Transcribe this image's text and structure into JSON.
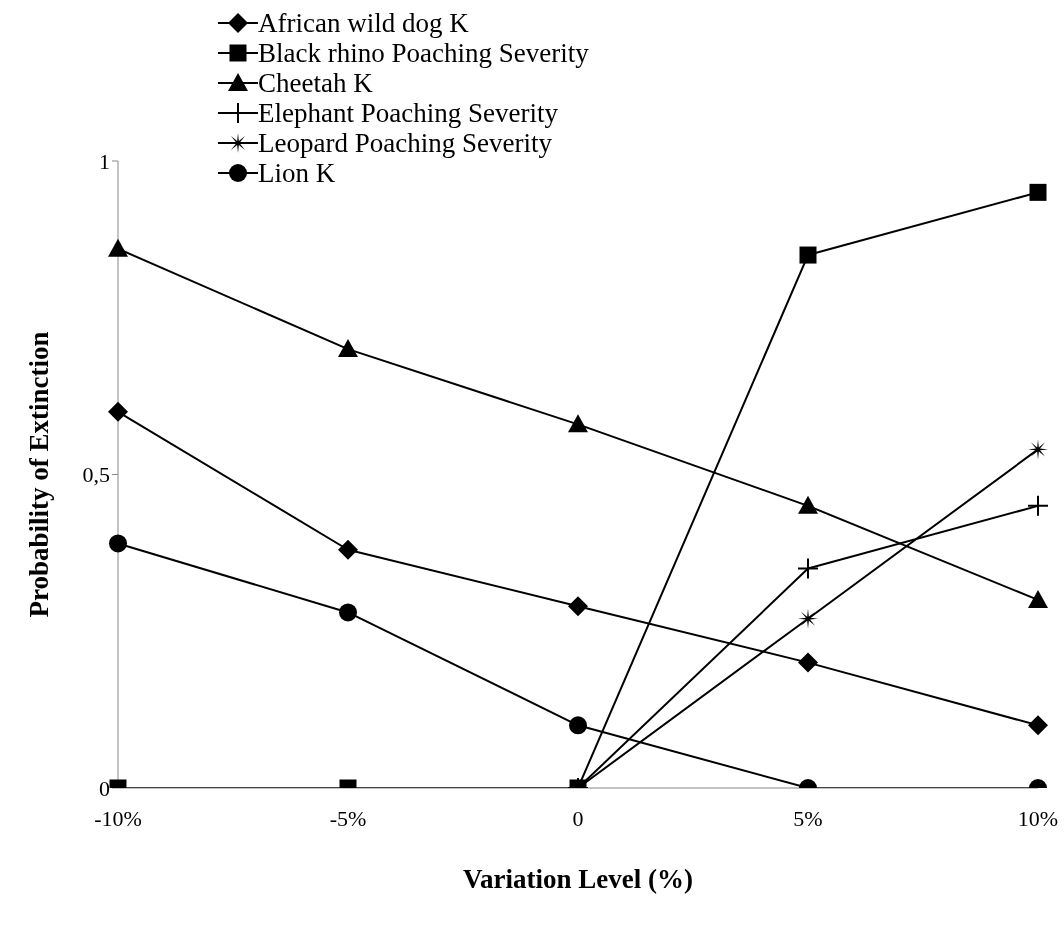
{
  "chart_data": {
    "type": "line",
    "xlabel": "Variation  Level (%)",
    "ylabel": "Probability of Extinction",
    "categories": [
      "-10%",
      "-5%",
      "0",
      "5%",
      "10%"
    ],
    "ylim": [
      0,
      1
    ],
    "yticks": [
      0,
      {
        "value": 0.5,
        "label": "0,5"
      },
      1
    ],
    "grid": false,
    "legend": "top",
    "series": [
      {
        "name": "African wild dog K",
        "color": "#000000",
        "marker": "diamond",
        "values": [
          0.6,
          0.38,
          0.29,
          0.2,
          0.1
        ]
      },
      {
        "name": "Black rhino Poaching Severity",
        "color": "#000000",
        "marker": "square",
        "values": [
          0,
          0,
          0,
          0.85,
          0.95
        ]
      },
      {
        "name": "Cheetah K",
        "color": "#000000",
        "marker": "triangle",
        "values": [
          0.86,
          0.7,
          0.58,
          0.45,
          0.3
        ]
      },
      {
        "name": "Elephant Poaching Severity",
        "color": "#000000",
        "marker": "cross",
        "values": [
          null,
          null,
          0,
          0.35,
          0.45
        ]
      },
      {
        "name": "Leopard Poaching Severity",
        "color": "#000000",
        "marker": "star",
        "values": [
          null,
          null,
          0,
          0.27,
          0.54
        ]
      },
      {
        "name": "Lion K",
        "color": "#000000",
        "marker": "circle",
        "values": [
          0.39,
          0.28,
          0.1,
          0,
          0
        ]
      }
    ]
  }
}
